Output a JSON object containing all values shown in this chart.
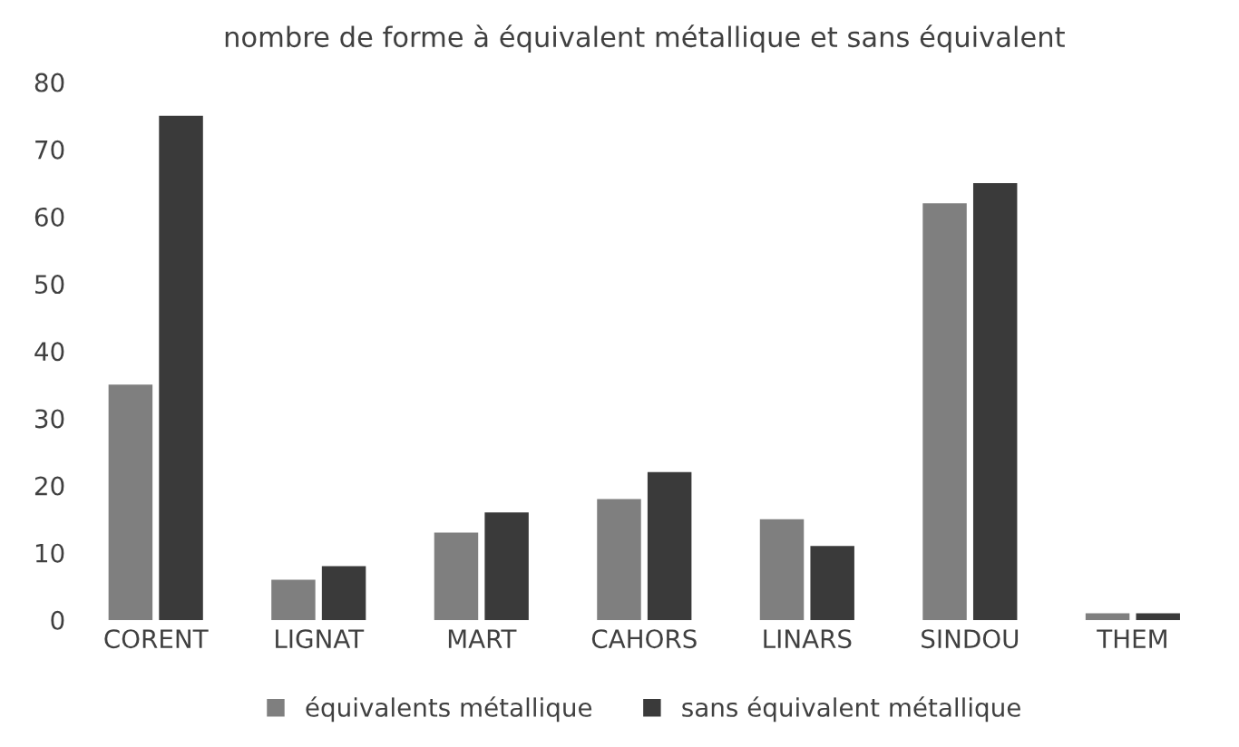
{
  "chart_data": {
    "type": "bar",
    "title": "nombre de forme à équivalent métallique et sans équivalent",
    "categories": [
      "CORENT",
      "LIGNAT",
      "MART",
      "CAHORS",
      "LINARS",
      "SINDOU",
      "THEM"
    ],
    "series": [
      {
        "name": "équivalents métallique",
        "color": "#7f7f7f",
        "values": [
          35,
          6,
          13,
          18,
          15,
          62,
          1
        ]
      },
      {
        "name": "sans équivalent métallique",
        "color": "#3a3a3a",
        "values": [
          75,
          8,
          16,
          22,
          11,
          65,
          1
        ]
      }
    ],
    "ylim": [
      0,
      80
    ],
    "yticks": [
      0,
      10,
      20,
      30,
      40,
      50,
      60,
      70,
      80
    ],
    "grid": false,
    "legend": "bottom"
  }
}
